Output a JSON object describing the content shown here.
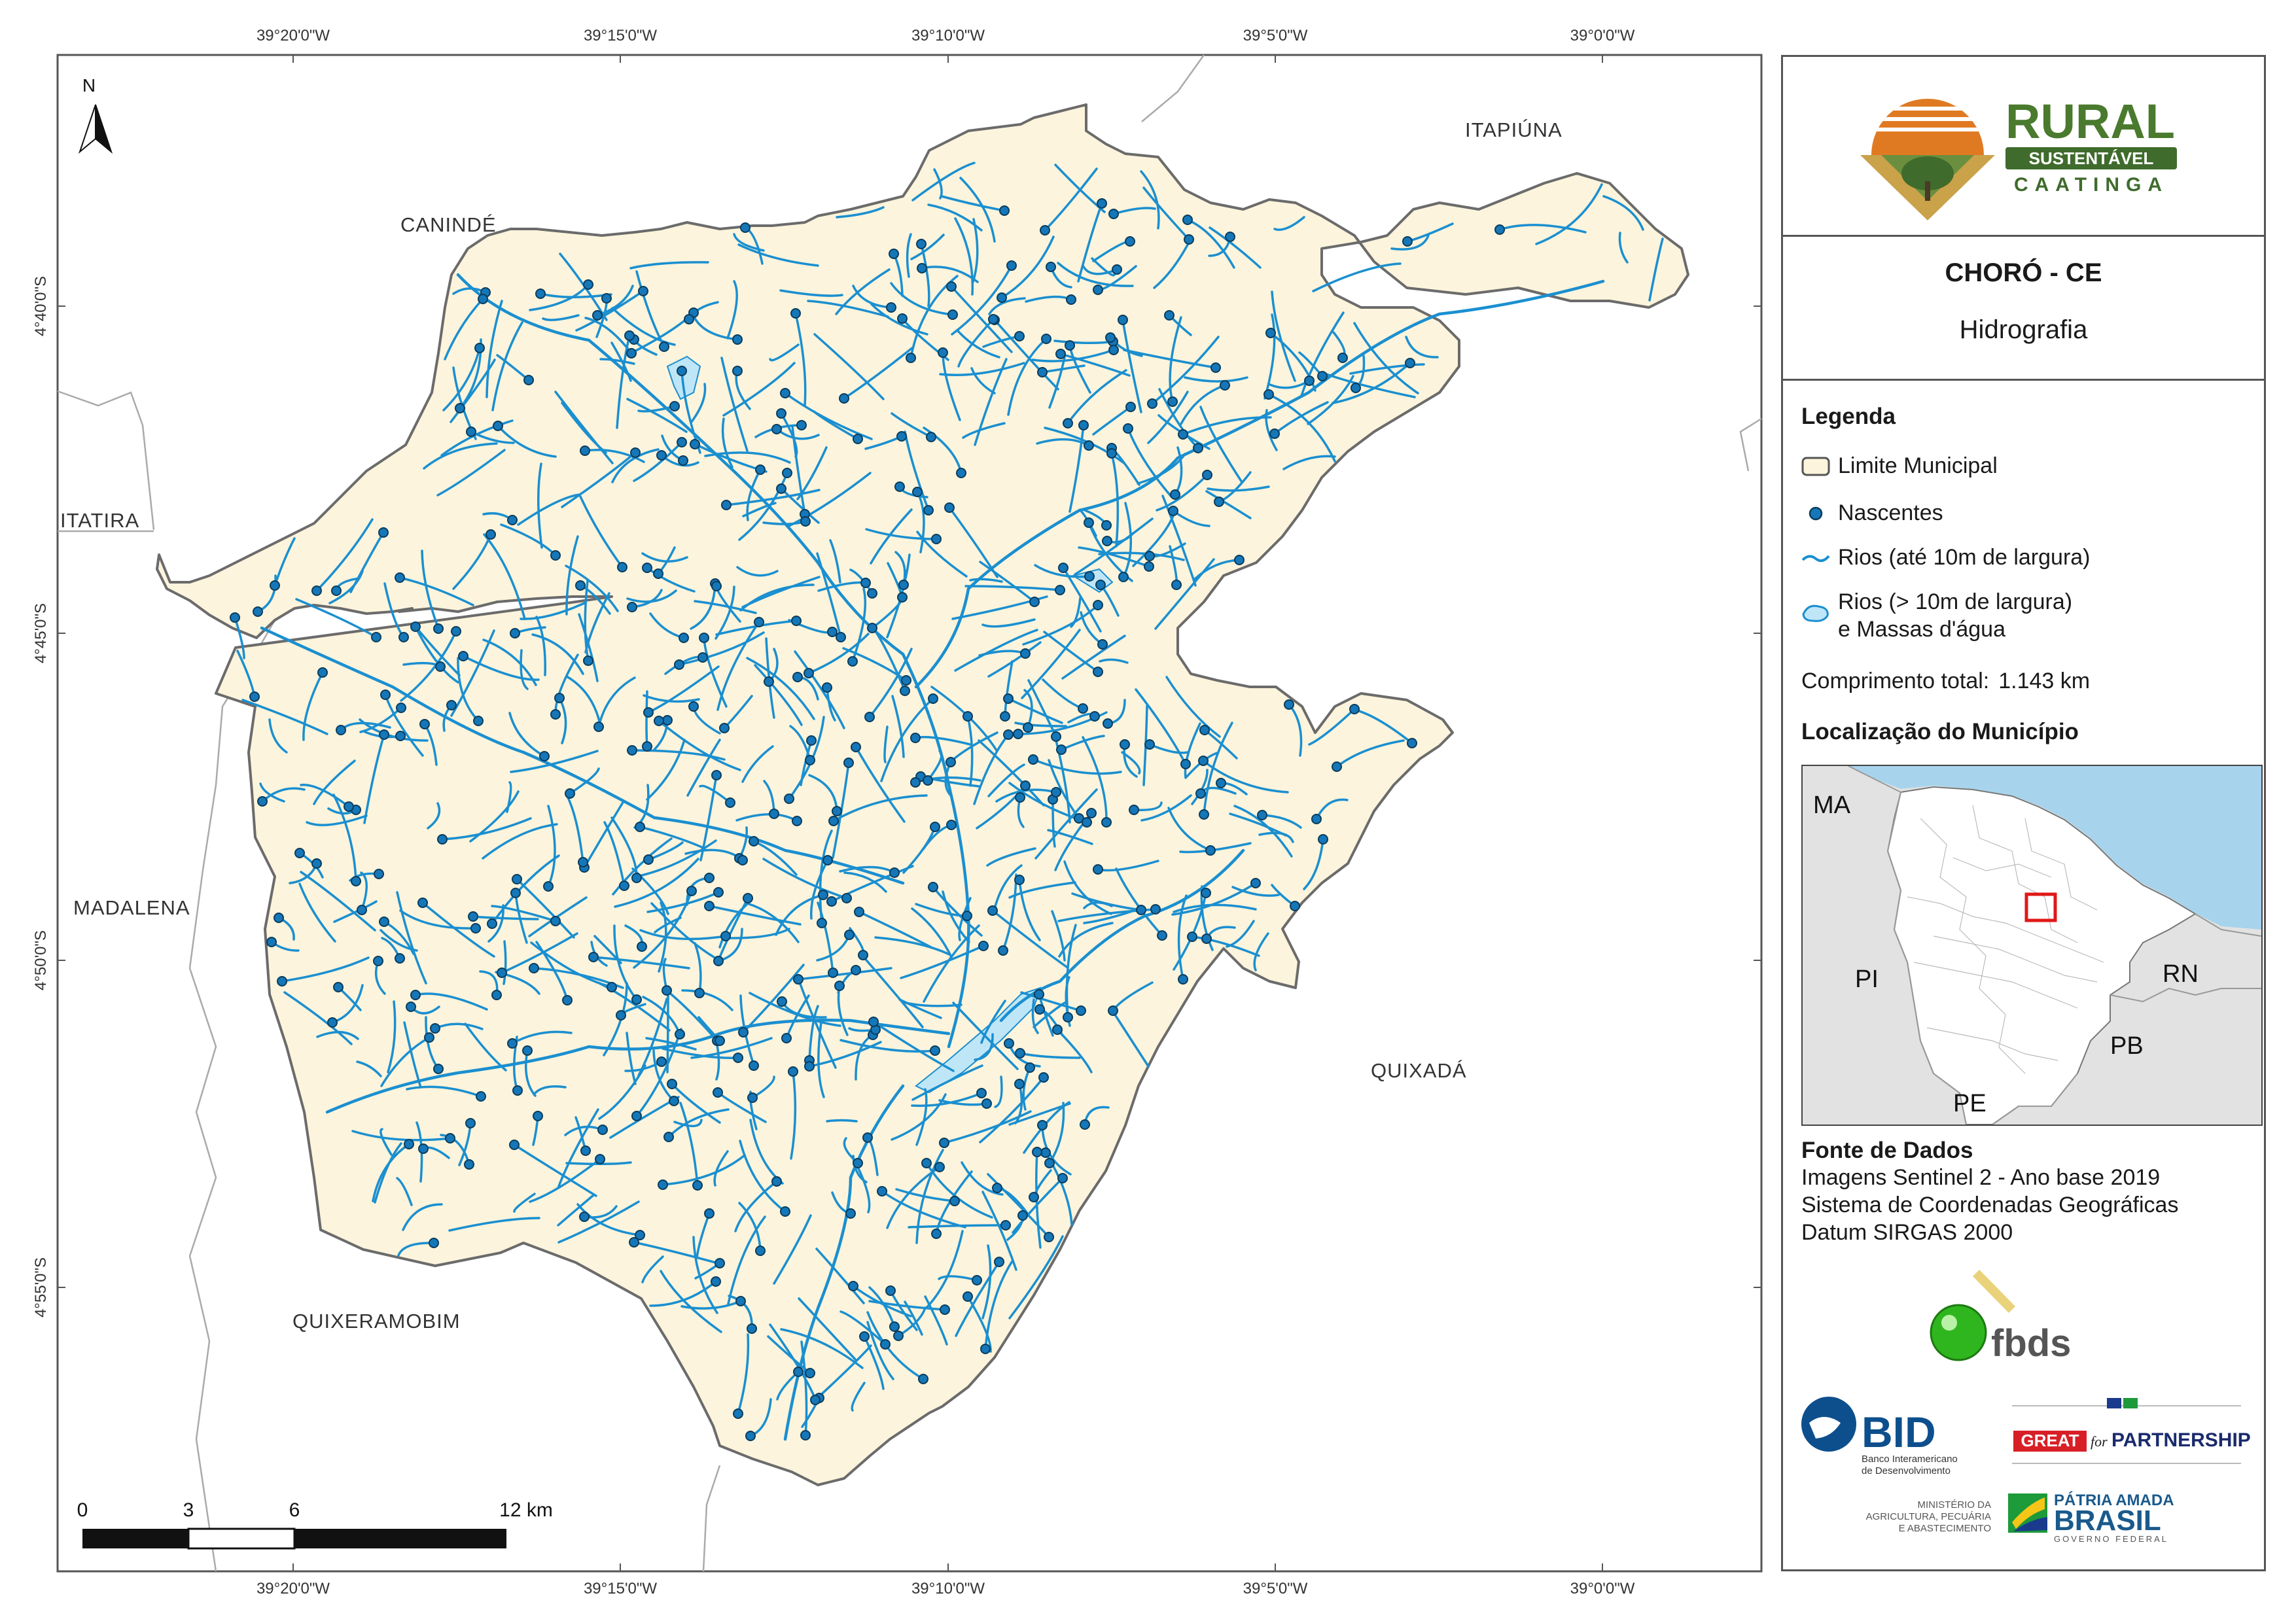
{
  "map": {
    "top_coords": [
      "39°20'0\"W",
      "39°15'0\"W",
      "39°10'0\"W",
      "39°5'0\"W",
      "39°0'0\"W"
    ],
    "bottom_coords": [
      "39°20'0\"W",
      "39°15'0\"W",
      "39°10'0\"W",
      "39°5'0\"W",
      "39°0'0\"W"
    ],
    "left_coords": [
      "4°40'0\"S",
      "4°45'0\"S",
      "4°50'0\"S",
      "4°55'0\"S"
    ],
    "north_label": "N",
    "places": {
      "itapiuna": "ITAPIÚNA",
      "caninde": "CANINDÉ",
      "itatira": "ITATIRA",
      "madalena": "MADALENA",
      "quixada": "QUIXADÁ",
      "quixeramobim": "QUIXERAMOBIM"
    },
    "scale": {
      "labels": [
        "0",
        "3",
        "6",
        "12 km"
      ]
    },
    "colors": {
      "municipality_fill": "#fcf4dc",
      "river": "#1a8fd0",
      "spring": "#1577b8",
      "border": "#6b6b6b"
    }
  },
  "panel": {
    "logo_rural": {
      "line1": "RURAL",
      "line2": "SUSTENTÁVEL",
      "line3": "CAATINGA"
    },
    "title": "CHORÓ - CE",
    "subtitle": "Hidrografia",
    "legend": {
      "heading": "Legenda",
      "items": [
        {
          "label": "Limite Municipal",
          "icon": "polygon-outline"
        },
        {
          "label": "Nascentes",
          "icon": "dot"
        },
        {
          "label": "Rios (até 10m de largura)",
          "icon": "river-line"
        },
        {
          "label": "Rios (> 10m de largura)",
          "label2": "e Massas d'água",
          "icon": "water-polygon"
        }
      ],
      "total_label": "Comprimento total:",
      "total_value": "1.143 km"
    },
    "location": {
      "heading": "Localização do Município",
      "labels": {
        "ma": "MA",
        "pi": "PI",
        "rn": "RN",
        "pb": "PB",
        "pe": "PE"
      }
    },
    "sources": {
      "heading": "Fonte de Dados",
      "lines": [
        "Imagens Sentinel 2 - Ano base 2019",
        "Sistema de Coordenadas Geográficas",
        "Datum SIRGAS 2000"
      ]
    },
    "logos": {
      "fbds": "fbds",
      "bid": "BID",
      "bid_sub1": "Banco Interamericano",
      "bid_sub2": "de Desenvolvimento",
      "great": "GREAT",
      "great_for": "for",
      "partnership": "PARTNERSHIP",
      "ministry1": "MINISTÉRIO DA",
      "ministry2": "AGRICULTURA, PECUÁRIA",
      "ministry3": "E ABASTECIMENTO",
      "patria": "PÁTRIA AMADA",
      "brasil": "BRASIL",
      "governo": "GOVERNO FEDERAL"
    }
  }
}
